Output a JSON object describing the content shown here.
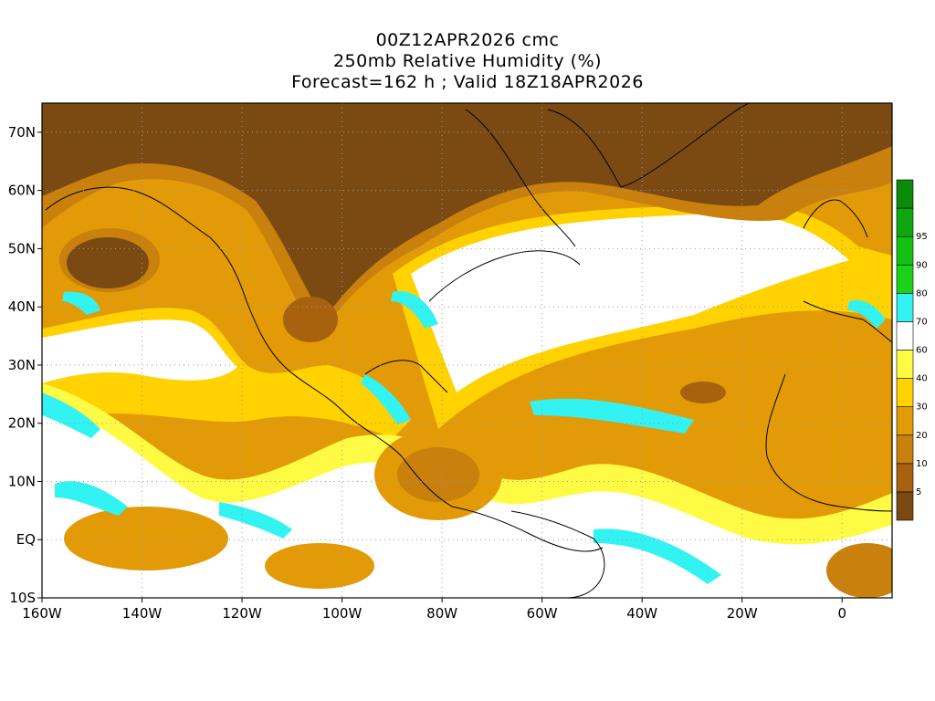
{
  "header": {
    "line1": "00Z12APR2026 cmc",
    "line2": "250mb Relative Humidity (%)",
    "line3": "Forecast=162 h ; Valid 18Z18APR2026"
  },
  "map": {
    "lon_range": [
      -160,
      10
    ],
    "lat_range": [
      -10,
      75
    ],
    "lon_ticks": [
      {
        "value": -160,
        "label": "160W"
      },
      {
        "value": -140,
        "label": "140W"
      },
      {
        "value": -120,
        "label": "120W"
      },
      {
        "value": -100,
        "label": "100W"
      },
      {
        "value": -80,
        "label": "80W"
      },
      {
        "value": -60,
        "label": "60W"
      },
      {
        "value": -40,
        "label": "40W"
      },
      {
        "value": -20,
        "label": "20W"
      },
      {
        "value": 0,
        "label": "0"
      }
    ],
    "lat_ticks": [
      {
        "value": 70,
        "label": "70N"
      },
      {
        "value": 60,
        "label": "60N"
      },
      {
        "value": 50,
        "label": "50N"
      },
      {
        "value": 40,
        "label": "40N"
      },
      {
        "value": 30,
        "label": "30N"
      },
      {
        "value": 20,
        "label": "20N"
      },
      {
        "value": 10,
        "label": "10N"
      },
      {
        "value": 0,
        "label": "EQ"
      },
      {
        "value": -10,
        "label": "10S"
      }
    ],
    "grid": true,
    "grid_style": "dotted"
  },
  "colorbar": {
    "levels": [
      {
        "label": "",
        "color": "#7a4a12"
      },
      {
        "label": "5",
        "color": "#a8620f"
      },
      {
        "label": "10",
        "color": "#c9800c"
      },
      {
        "label": "20",
        "color": "#e39a07"
      },
      {
        "label": "30",
        "color": "#ffd200"
      },
      {
        "label": "40",
        "color": "#fffb44"
      },
      {
        "label": "60",
        "color": "#ffffff"
      },
      {
        "label": "70",
        "color": "#33f2f2"
      },
      {
        "label": "80",
        "color": "#19d219"
      },
      {
        "label": "90",
        "color": "#12c112"
      },
      {
        "label": "95",
        "color": "#0ea80e"
      },
      {
        "label": "",
        "color": "#0b8a0b"
      }
    ]
  }
}
